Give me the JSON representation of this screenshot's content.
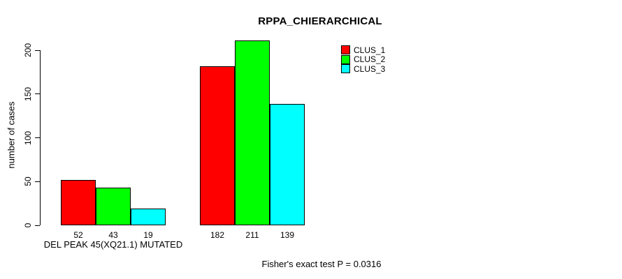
{
  "title": "RPPA_CHIERARCHICAL",
  "chart_data": {
    "type": "bar",
    "title": "RPPA_CHIERARCHICAL",
    "ylabel": "number of cases",
    "xlabel": "DEL PEAK 45(XQ21.1) MUTATED",
    "categories": [
      "DEL PEAK 45(XQ21.1) MUTATED",
      ""
    ],
    "series": [
      {
        "name": "CLUS_1",
        "color": "#ff0000",
        "values": [
          52,
          182
        ]
      },
      {
        "name": "CLUS_2",
        "color": "#00ff00",
        "values": [
          43,
          211
        ]
      },
      {
        "name": "CLUS_3",
        "color": "#00ffff",
        "values": [
          19,
          139
        ]
      }
    ],
    "yticks": [
      0,
      50,
      100,
      150,
      200
    ],
    "ylim": [
      0,
      215
    ],
    "grid": false,
    "bar_value_labels_shown": true,
    "legend_position": "top-right",
    "note": "Fisher's exact test P = 0.0316"
  }
}
